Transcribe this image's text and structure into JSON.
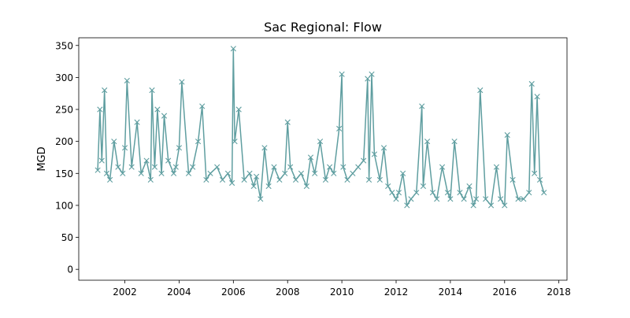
{
  "chart_data": {
    "type": "line",
    "title": "Sac Regional: Flow",
    "xlabel": "",
    "ylabel": "MGD",
    "xlim": [
      2000.3,
      2018.3
    ],
    "ylim": [
      -17,
      362
    ],
    "x_ticks": [
      2002,
      2004,
      2006,
      2008,
      2010,
      2012,
      2014,
      2016,
      2018
    ],
    "x_tick_labels": [
      "2002",
      "2004",
      "2006",
      "2008",
      "2010",
      "2012",
      "2014",
      "2016",
      "2018"
    ],
    "y_ticks": [
      0,
      50,
      100,
      150,
      200,
      250,
      300,
      350
    ],
    "y_tick_labels": [
      "0",
      "50",
      "100",
      "150",
      "200",
      "250",
      "300",
      "350"
    ],
    "grid": false,
    "legend": "none",
    "series": [
      {
        "color": "#5f9ea0",
        "marker": "x",
        "x": [
          2001.0,
          2001.08,
          2001.15,
          2001.25,
          2001.33,
          2001.45,
          2001.6,
          2001.75,
          2001.92,
          2002.0,
          2002.08,
          2002.25,
          2002.45,
          2002.6,
          2002.8,
          2002.95,
          2003.0,
          2003.1,
          2003.2,
          2003.35,
          2003.45,
          2003.6,
          2003.8,
          2003.88,
          2004.0,
          2004.1,
          2004.35,
          2004.5,
          2004.7,
          2004.85,
          2005.0,
          2005.15,
          2005.4,
          2005.6,
          2005.8,
          2005.95,
          2006.0,
          2006.05,
          2006.2,
          2006.4,
          2006.6,
          2006.75,
          2006.85,
          2007.0,
          2007.15,
          2007.3,
          2007.5,
          2007.7,
          2007.9,
          2008.0,
          2008.1,
          2008.3,
          2008.5,
          2008.7,
          2008.85,
          2009.0,
          2009.2,
          2009.4,
          2009.55,
          2009.7,
          2009.9,
          2010.0,
          2010.05,
          2010.2,
          2010.4,
          2010.6,
          2010.8,
          2010.95,
          2011.0,
          2011.1,
          2011.2,
          2011.4,
          2011.55,
          2011.7,
          2011.85,
          2012.0,
          2012.1,
          2012.25,
          2012.4,
          2012.55,
          2012.75,
          2012.95,
          2013.0,
          2013.15,
          2013.35,
          2013.5,
          2013.7,
          2013.9,
          2014.0,
          2014.15,
          2014.35,
          2014.5,
          2014.7,
          2014.85,
          2014.95,
          2015.1,
          2015.3,
          2015.5,
          2015.7,
          2015.85,
          2016.0,
          2016.1,
          2016.3,
          2016.5,
          2016.7,
          2016.9,
          2017.0,
          2017.1,
          2017.2,
          2017.3,
          2017.45
        ],
        "y": [
          155,
          250,
          170,
          280,
          150,
          140,
          200,
          160,
          150,
          190,
          295,
          160,
          230,
          150,
          170,
          140,
          280,
          160,
          250,
          150,
          240,
          170,
          150,
          160,
          190,
          293,
          150,
          160,
          200,
          255,
          140,
          150,
          160,
          140,
          150,
          135,
          345,
          200,
          250,
          140,
          150,
          130,
          145,
          110,
          190,
          130,
          160,
          140,
          150,
          230,
          160,
          140,
          150,
          130,
          175,
          150,
          200,
          140,
          160,
          150,
          220,
          305,
          160,
          140,
          150,
          160,
          170,
          298,
          140,
          305,
          180,
          140,
          190,
          130,
          120,
          110,
          120,
          150,
          100,
          110,
          120,
          255,
          130,
          200,
          120,
          110,
          160,
          120,
          110,
          200,
          120,
          110,
          130,
          100,
          110,
          280,
          110,
          100,
          160,
          110,
          100,
          210,
          140,
          110,
          110,
          120,
          290,
          150,
          270,
          140,
          120
        ]
      }
    ]
  }
}
